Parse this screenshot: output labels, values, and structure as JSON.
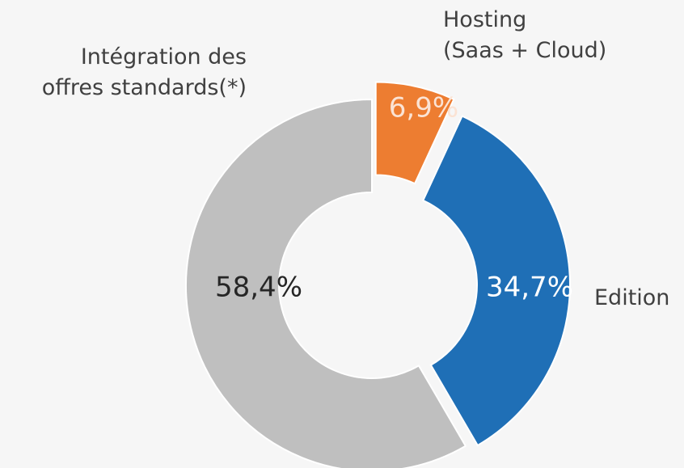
{
  "chart_data": {
    "type": "donut",
    "categories": [
      "Hosting\n(Saas + Cloud)",
      "Edition",
      "Intégration des\noffres standards(*)"
    ],
    "values": [
      6.9,
      34.7,
      58.4
    ],
    "value_labels": [
      "6,9%",
      "34,7%",
      "58,4%"
    ],
    "colors": [
      "#ed7d31",
      "#1f6fb6",
      "#bfbfbf"
    ],
    "label_colors": [
      "#fbe3d4",
      "#ffffff",
      "#262626"
    ]
  }
}
